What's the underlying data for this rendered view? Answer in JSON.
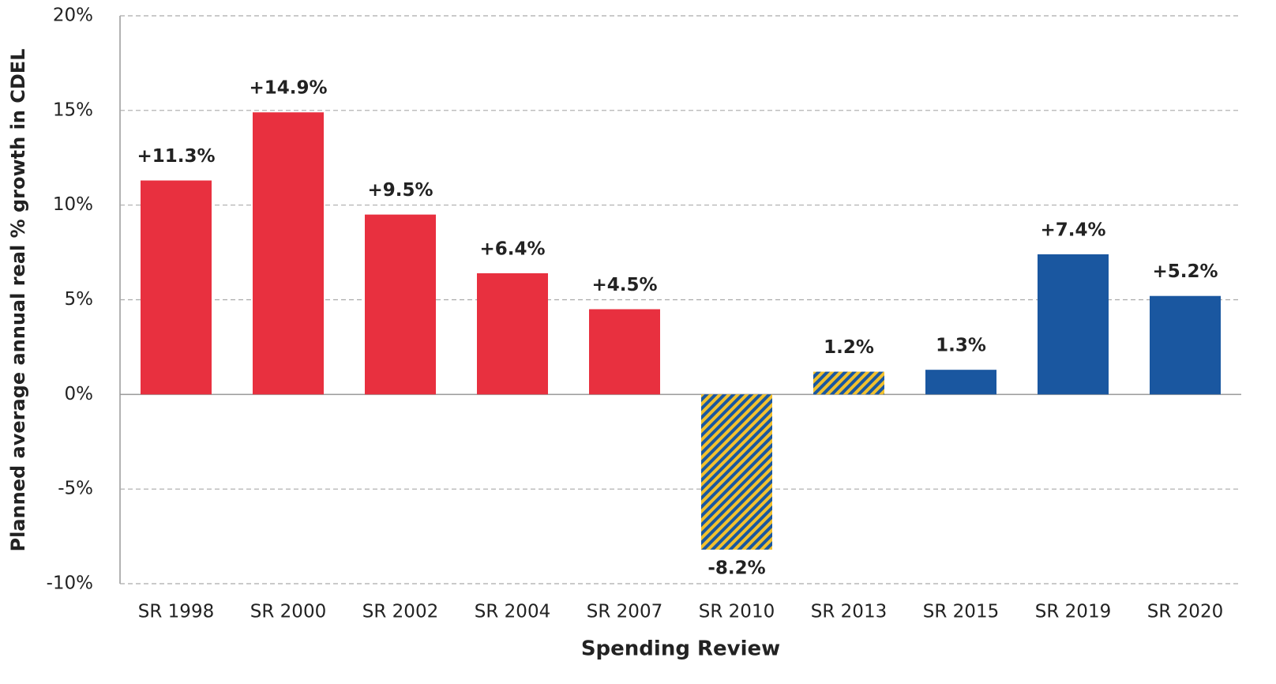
{
  "chart_data": {
    "type": "bar",
    "x_label": "Spending Review",
    "y_label": "Planned average annual real % growth in CDEL",
    "categories": [
      "SR 1998",
      "SR 2000",
      "SR 2002",
      "SR 2004",
      "SR 2007",
      "SR 2010",
      "SR 2013",
      "SR 2015",
      "SR 2019",
      "SR 2020"
    ],
    "values": [
      11.3,
      14.9,
      9.5,
      6.4,
      4.5,
      -8.2,
      1.2,
      1.3,
      7.4,
      5.2
    ],
    "value_labels": [
      "+11.3%",
      "+14.9%",
      "+9.5%",
      "+6.4%",
      "+4.5%",
      "-8.2%",
      "1.2%",
      "1.3%",
      "+7.4%",
      "+5.2%"
    ],
    "colors": [
      "#e8303f",
      "#e8303f",
      "#e8303f",
      "#e8303f",
      "#e8303f",
      [
        "#f2c12e",
        "#1a57a0"
      ],
      [
        "#f2c12e",
        "#1a57a0"
      ],
      "#1a57a0",
      "#1a57a0",
      "#1a57a0"
    ],
    "ylim": [
      -10,
      20
    ],
    "yticks": [
      {
        "value": -10,
        "label": "-10%"
      },
      {
        "value": -5,
        "label": "-5%"
      },
      {
        "value": 0,
        "label": "0%"
      },
      {
        "value": 5,
        "label": "5%"
      },
      {
        "value": 10,
        "label": "10%"
      },
      {
        "value": 15,
        "label": "15%"
      },
      {
        "value": 20,
        "label": "20%"
      }
    ],
    "grid": true
  }
}
